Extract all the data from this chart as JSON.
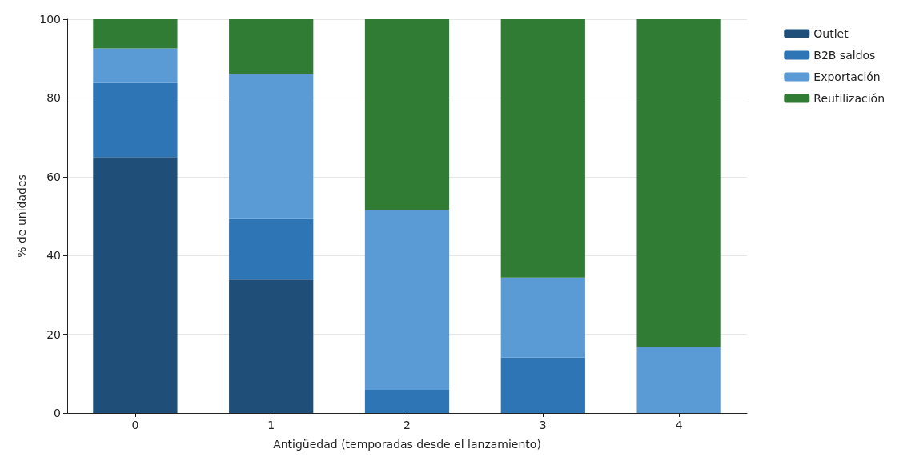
{
  "chart_data": {
    "type": "bar",
    "stacked": true,
    "xlabel": "Antigüedad (temporadas desde el lanzamiento)",
    "ylabel": "% de unidades",
    "categories": [
      "0",
      "1",
      "2",
      "3",
      "4"
    ],
    "series": [
      {
        "name": "Outlet",
        "color": "#1f4e79",
        "values": [
          65,
          33.9,
          0,
          0,
          0
        ]
      },
      {
        "name": "B2B saldos",
        "color": "#2e75b6",
        "values": [
          18.8,
          15.4,
          5.9,
          14.1,
          0
        ]
      },
      {
        "name": "Exportación",
        "color": "#5b9bd5",
        "values": [
          8.8,
          36.8,
          45.6,
          20.3,
          16.8
        ]
      },
      {
        "name": "Reutilización",
        "color": "#317c34",
        "values": [
          7.4,
          13.9,
          48.5,
          65.6,
          83.2
        ]
      }
    ],
    "ylim": [
      0,
      100
    ],
    "yticks": [
      0,
      20,
      40,
      60,
      80,
      100
    ],
    "grid": "y",
    "legend": "top right"
  }
}
